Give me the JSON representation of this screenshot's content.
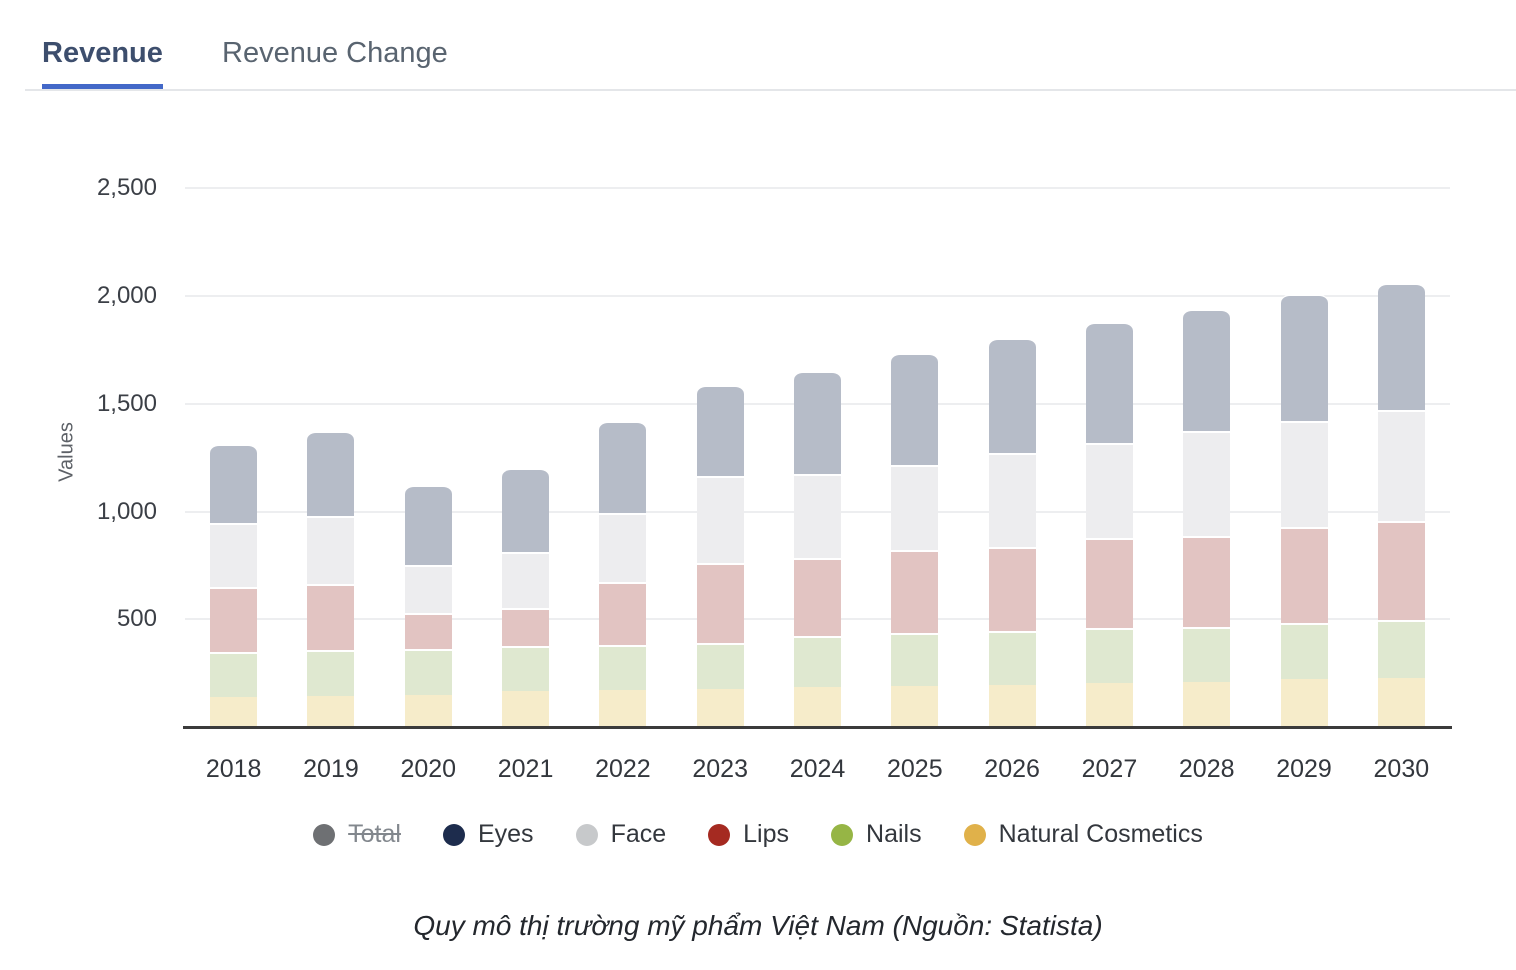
{
  "tabs": [
    {
      "label": "Revenue",
      "active": true
    },
    {
      "label": "Revenue Change",
      "active": false
    }
  ],
  "chart_data": {
    "type": "bar",
    "stacked": true,
    "title": "",
    "xlabel": "",
    "ylabel": "Values",
    "ylim": [
      0,
      2724
    ],
    "yticks": [
      500,
      1000,
      1500,
      2000,
      2500
    ],
    "ytick_labels": [
      "500",
      "1,000",
      "1,500",
      "2,000",
      "2,500"
    ],
    "grid": true,
    "categories": [
      "2018",
      "2019",
      "2020",
      "2021",
      "2022",
      "2023",
      "2024",
      "2025",
      "2026",
      "2027",
      "2028",
      "2029",
      "2030"
    ],
    "series": [
      {
        "name": "Natural Cosmetics",
        "color": "#e0b14a",
        "fill": "#f6ecca",
        "values": [
          140,
          145,
          150,
          165,
          170,
          175,
          185,
          190,
          195,
          205,
          210,
          222,
          228
        ]
      },
      {
        "name": "Nails",
        "color": "#96b545",
        "fill": "#dfe8d0",
        "values": [
          210,
          213,
          213,
          212,
          211,
          216,
          238,
          247,
          252,
          255,
          255,
          263,
          267
        ]
      },
      {
        "name": "Lips",
        "color": "#a52a21",
        "fill": "#e2c4c2",
        "values": [
          298,
          307,
          164,
          176,
          294,
          372,
          363,
          386,
          390,
          419,
          423,
          443,
          460
        ]
      },
      {
        "name": "Face",
        "color": "#c7c9cb",
        "fill": "#ededef",
        "values": [
          297,
          315,
          223,
          257,
          320,
          402,
          386,
          392,
          433,
          441,
          484,
          492,
          515
        ]
      },
      {
        "name": "Eyes",
        "color": "#1d2c4d",
        "fill": "#b6bcc8",
        "values": [
          370,
          395,
          375,
          390,
          425,
          420,
          478,
          520,
          535,
          560,
          568,
          590,
          590
        ]
      }
    ],
    "stack_totals": [
      1315,
      1375,
      1125,
      1200,
      1420,
      1585,
      1650,
      1735,
      1805,
      1880,
      1940,
      2010,
      2060
    ],
    "legend_position": "bottom",
    "legend": [
      {
        "label": "Total",
        "color": "#6e7073",
        "disabled": true
      },
      {
        "label": "Eyes",
        "color": "#1d2c4d",
        "disabled": false
      },
      {
        "label": "Face",
        "color": "#c7c9cb",
        "disabled": false
      },
      {
        "label": "Lips",
        "color": "#a52a21",
        "disabled": false
      },
      {
        "label": "Nails",
        "color": "#96b545",
        "disabled": false
      },
      {
        "label": "Natural Cosmetics",
        "color": "#e0b14a",
        "disabled": false
      }
    ]
  },
  "caption": "Quy mô thị trường mỹ phẩm Việt Nam (Nguồn: Statista)"
}
